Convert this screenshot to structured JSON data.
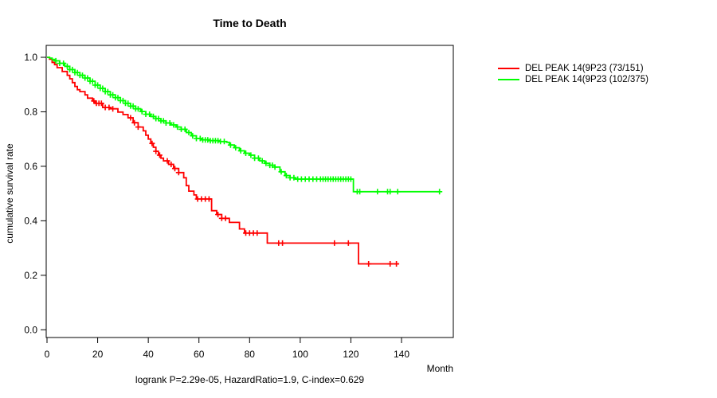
{
  "figure": {
    "title": "Time to Death",
    "x_axis_label": "Month",
    "y_axis_label": "cumulative survival rate",
    "annotation": "logrank P=2.29e-05, HazardRatio=1.9, C-index=0.629"
  },
  "chart_data": {
    "type": "line",
    "subtype": "kaplan-meier-step-curves",
    "title": "Time to Death",
    "xlabel": "Month",
    "ylabel": "cumulative survival rate",
    "annotation": "logrank P=2.29e-05, HazardRatio=1.9, C-index=0.629",
    "xlim": [
      0,
      160
    ],
    "ylim": [
      0.0,
      1.0
    ],
    "x_ticks": [
      0,
      20,
      40,
      60,
      80,
      100,
      120,
      140
    ],
    "y_ticks": [
      "1.0",
      "0.8",
      "0.6",
      "0.4",
      "0.2",
      "0.0"
    ],
    "grid": false,
    "legend_position": "right-outside",
    "series": [
      {
        "name": "DEL PEAK 14(9P23 (73/151)",
        "color": "#ff0000",
        "end_time": 139,
        "steps": [
          [
            0,
            1.0
          ],
          [
            1,
            0.993
          ],
          [
            2,
            0.981
          ],
          [
            3,
            0.973
          ],
          [
            4,
            0.962
          ],
          [
            6,
            0.948
          ],
          [
            8,
            0.934
          ],
          [
            9,
            0.921
          ],
          [
            10,
            0.907
          ],
          [
            11,
            0.893
          ],
          [
            12,
            0.881
          ],
          [
            13,
            0.874
          ],
          [
            15,
            0.862
          ],
          [
            16,
            0.85
          ],
          [
            18,
            0.84
          ],
          [
            19,
            0.831
          ],
          [
            22,
            0.816
          ],
          [
            25,
            0.811
          ],
          [
            28,
            0.799
          ],
          [
            30,
            0.79
          ],
          [
            32,
            0.778
          ],
          [
            34,
            0.76
          ],
          [
            36,
            0.744
          ],
          [
            38,
            0.73
          ],
          [
            39,
            0.714
          ],
          [
            40,
            0.7
          ],
          [
            41,
            0.684
          ],
          [
            42,
            0.67
          ],
          [
            43,
            0.655
          ],
          [
            44,
            0.641
          ],
          [
            45,
            0.63
          ],
          [
            46,
            0.62
          ],
          [
            48,
            0.607
          ],
          [
            50,
            0.592
          ],
          [
            52,
            0.577
          ],
          [
            54,
            0.558
          ],
          [
            55,
            0.529
          ],
          [
            56,
            0.509
          ],
          [
            58,
            0.495
          ],
          [
            59,
            0.48
          ],
          [
            65,
            0.437
          ],
          [
            67,
            0.423
          ],
          [
            69,
            0.409
          ],
          [
            72,
            0.394
          ],
          [
            76,
            0.37
          ],
          [
            78,
            0.355
          ],
          [
            87,
            0.318
          ],
          [
            123,
            0.242
          ]
        ],
        "censor_times": [
          18.5,
          19.5,
          20.5,
          21.5,
          23,
          24.5,
          26,
          33,
          34.5,
          36,
          41.5,
          43,
          44.5,
          47.5,
          49,
          50.5,
          52,
          59.5,
          61,
          62.5,
          64,
          67.5,
          69,
          70.5,
          78.5,
          80,
          81.5,
          83,
          91.5,
          93,
          113.5,
          119,
          127,
          135.5,
          138
        ]
      },
      {
        "name": "DEL PEAK 14(9P23 (102/375)",
        "color": "#00ff00",
        "end_time": 155,
        "steps": [
          [
            0,
            1.0
          ],
          [
            1,
            0.997
          ],
          [
            2,
            0.992
          ],
          [
            3,
            0.987
          ],
          [
            5,
            0.978
          ],
          [
            7,
            0.967
          ],
          [
            9,
            0.955
          ],
          [
            11,
            0.944
          ],
          [
            13,
            0.934
          ],
          [
            15,
            0.924
          ],
          [
            17,
            0.912
          ],
          [
            19,
            0.898
          ],
          [
            21,
            0.886
          ],
          [
            23,
            0.874
          ],
          [
            25,
            0.862
          ],
          [
            27,
            0.852
          ],
          [
            29,
            0.841
          ],
          [
            31,
            0.831
          ],
          [
            33,
            0.821
          ],
          [
            35,
            0.811
          ],
          [
            37,
            0.801
          ],
          [
            39,
            0.791
          ],
          [
            41,
            0.783
          ],
          [
            43,
            0.775
          ],
          [
            45,
            0.767
          ],
          [
            47,
            0.759
          ],
          [
            49,
            0.752
          ],
          [
            51,
            0.744
          ],
          [
            53,
            0.736
          ],
          [
            55,
            0.724
          ],
          [
            57,
            0.712
          ],
          [
            59,
            0.702
          ],
          [
            61,
            0.697
          ],
          [
            64,
            0.694
          ],
          [
            68,
            0.691
          ],
          [
            71,
            0.688
          ],
          [
            72,
            0.678
          ],
          [
            74,
            0.668
          ],
          [
            76,
            0.657
          ],
          [
            78,
            0.648
          ],
          [
            80,
            0.641
          ],
          [
            82,
            0.63
          ],
          [
            84,
            0.62
          ],
          [
            86,
            0.611
          ],
          [
            88,
            0.604
          ],
          [
            90,
            0.597
          ],
          [
            92,
            0.58
          ],
          [
            94,
            0.566
          ],
          [
            96,
            0.558
          ],
          [
            98,
            0.553
          ],
          [
            121,
            0.507
          ]
        ],
        "censor_times": [
          3.5,
          5,
          6.5,
          8,
          9,
          10,
          11,
          12,
          13,
          14,
          15,
          16,
          17,
          18,
          19,
          20,
          21,
          22,
          23,
          24,
          25,
          26,
          27,
          28,
          29,
          30,
          31,
          32,
          33,
          34,
          35,
          36,
          37.5,
          39,
          40.5,
          42,
          43,
          44,
          45,
          46,
          47,
          48.5,
          50,
          51.5,
          53,
          54.5,
          56,
          57.5,
          59,
          60.5,
          61.5,
          62.5,
          63.5,
          64.5,
          65.5,
          66.5,
          67.5,
          68.5,
          70,
          72.5,
          74.5,
          76.5,
          78.5,
          80.5,
          82,
          83.5,
          85,
          86.5,
          88,
          89,
          90,
          92.5,
          94.5,
          96,
          97.5,
          99,
          100.5,
          102,
          103.5,
          105,
          106.5,
          108,
          109,
          110,
          111,
          112,
          113,
          114,
          115,
          116,
          117,
          118,
          119,
          120,
          122.5,
          123.5,
          130.5,
          134.5,
          135.5,
          138.5,
          155
        ]
      }
    ]
  }
}
